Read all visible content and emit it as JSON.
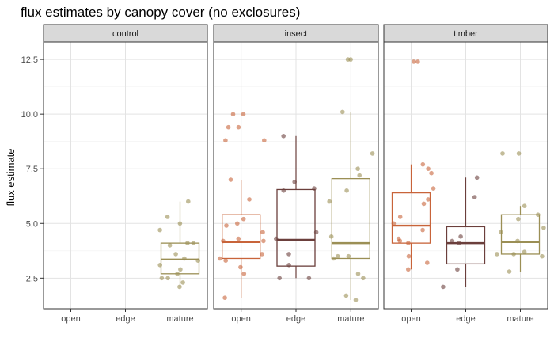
{
  "chart_data": {
    "type": "box",
    "title": "flux estimates by canopy cover (no exclosures)",
    "xlabel": "",
    "ylabel": "flux estimate",
    "ylim": [
      1.1,
      13.3
    ],
    "yticks": [
      2.5,
      5.0,
      7.5,
      10.0,
      12.5
    ],
    "ytick_labels": [
      "2.5",
      "5.0",
      "7.5",
      "10.0",
      "12.5"
    ],
    "categories": [
      "open",
      "edge",
      "mature"
    ],
    "grid": true,
    "legend": "none",
    "colors": {
      "open": "#c8643a",
      "edge": "#6b3f3c",
      "mature": "#9b8f55"
    },
    "strip": {
      "fill": "#d9d9d9",
      "border": "#333333"
    },
    "panels": [
      {
        "name": "control",
        "boxes": [
          {
            "category": "mature",
            "q1": 2.7,
            "median": 3.35,
            "q3": 4.1,
            "lower_whisker": 2.1,
            "upper_whisker": 6.0,
            "points": [
              2.1,
              2.3,
              2.5,
              2.5,
              2.7,
              2.9,
              3.1,
              3.3,
              3.4,
              3.6,
              4.0,
              4.1,
              4.1,
              4.7,
              5.0,
              5.3,
              6.0
            ]
          }
        ]
      },
      {
        "name": "insect",
        "boxes": [
          {
            "category": "open",
            "q1": 3.4,
            "median": 4.15,
            "q3": 5.4,
            "lower_whisker": 1.6,
            "upper_whisker": 7.0,
            "points": [
              1.6,
              2.7,
              3.0,
              3.3,
              3.4,
              3.6,
              4.2,
              4.2,
              4.3,
              4.6,
              4.9,
              5.0,
              5.2,
              6.1,
              7.0,
              8.8,
              8.8,
              9.4,
              9.4,
              10.0,
              10.0
            ]
          },
          {
            "category": "edge",
            "q1": 3.05,
            "median": 4.25,
            "q3": 6.55,
            "lower_whisker": 2.5,
            "upper_whisker": 9.0,
            "points": [
              2.5,
              2.5,
              3.1,
              3.6,
              4.3,
              4.6,
              6.5,
              6.6,
              6.9,
              9.0
            ]
          },
          {
            "category": "mature",
            "q1": 3.4,
            "median": 4.1,
            "q3": 7.05,
            "lower_whisker": 1.5,
            "upper_whisker": 10.1,
            "points": [
              1.5,
              1.7,
              2.5,
              2.7,
              3.4,
              3.5,
              3.5,
              4.4,
              6.0,
              6.5,
              7.2,
              7.5,
              8.2,
              10.1,
              12.5,
              12.5
            ]
          }
        ]
      },
      {
        "name": "timber",
        "boxes": [
          {
            "category": "open",
            "q1": 4.1,
            "median": 4.9,
            "q3": 6.4,
            "lower_whisker": 2.9,
            "upper_whisker": 7.7,
            "points": [
              2.9,
              3.2,
              3.5,
              4.1,
              4.2,
              4.3,
              4.7,
              5.0,
              5.3,
              5.9,
              6.1,
              6.6,
              7.3,
              7.5,
              7.7,
              12.4,
              12.4
            ]
          },
          {
            "category": "edge",
            "q1": 3.15,
            "median": 4.1,
            "q3": 4.85,
            "lower_whisker": 2.1,
            "upper_whisker": 7.1,
            "points": [
              2.1,
              2.9,
              4.1,
              4.2,
              4.4,
              6.2,
              7.1
            ]
          },
          {
            "category": "mature",
            "q1": 3.6,
            "median": 4.15,
            "q3": 5.4,
            "lower_whisker": 2.8,
            "upper_whisker": 5.8,
            "points": [
              2.8,
              3.5,
              3.6,
              3.6,
              3.7,
              4.2,
              4.6,
              4.8,
              5.2,
              5.4,
              5.8,
              8.2,
              8.2
            ]
          }
        ]
      }
    ]
  }
}
